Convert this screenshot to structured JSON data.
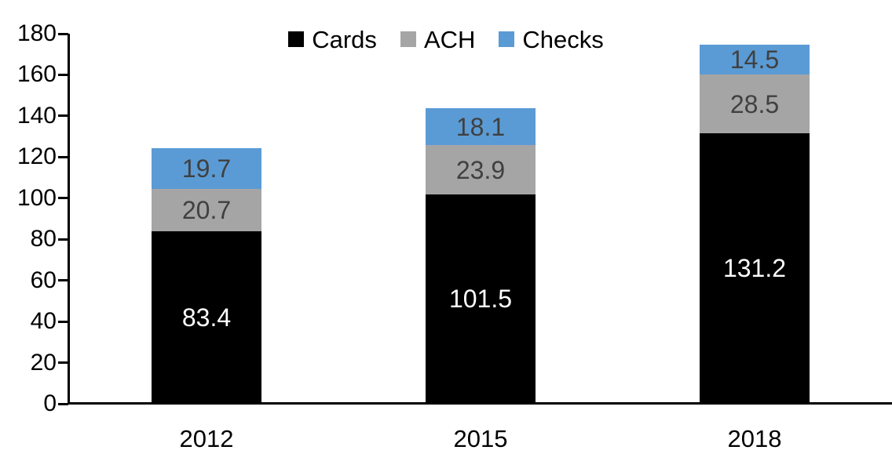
{
  "chart_data": {
    "type": "bar",
    "stacked": true,
    "orientation": "vertical",
    "title": "",
    "xlabel": "",
    "ylabel": "",
    "categories": [
      "2012",
      "2015",
      "2018"
    ],
    "series": [
      {
        "name": "Cards",
        "color": "#000000",
        "label_color": "#ffffff",
        "values": [
          83.4,
          101.5,
          131.2
        ]
      },
      {
        "name": "ACH",
        "color": "#a5a5a5",
        "label_color": "#404040",
        "values": [
          20.7,
          23.9,
          28.5
        ]
      },
      {
        "name": "Checks",
        "color": "#5b9bd5",
        "label_color": "#404040",
        "values": [
          19.7,
          18.1,
          14.5
        ]
      }
    ],
    "totals": [
      123.8,
      143.5,
      174.2
    ],
    "ylim": [
      0,
      180
    ],
    "ytick_step": 20,
    "ytick_labels": [
      "0",
      "20",
      "40",
      "60",
      "80",
      "100",
      "120",
      "140",
      "160",
      "180"
    ],
    "grid": false,
    "legend_position": "top-center",
    "axis_color": "#000000",
    "background_color": "#ffffff"
  }
}
